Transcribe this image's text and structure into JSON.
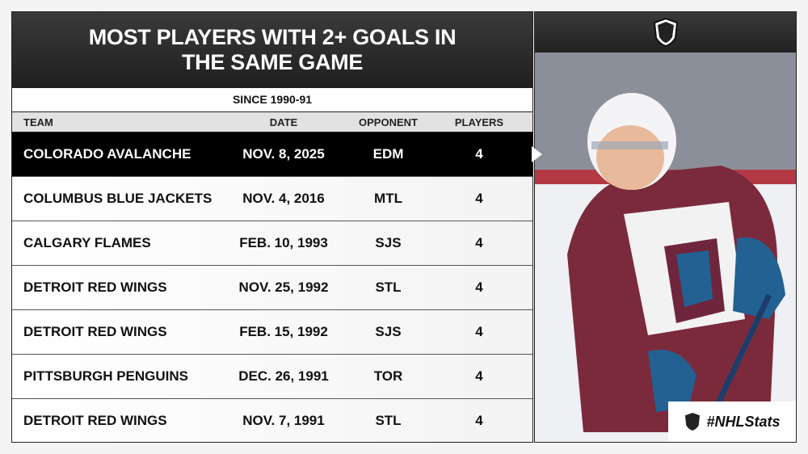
{
  "header": {
    "title": "MOST PLAYERS WITH 2+ GOALS IN THE SAME GAME",
    "subtitle": "SINCE 1990-91"
  },
  "table": {
    "columns": [
      "TEAM",
      "DATE",
      "OPPONENT",
      "PLAYERS"
    ],
    "rows": [
      [
        "COLORADO AVALANCHE",
        "NOV. 8, 2025",
        "EDM",
        "4"
      ],
      [
        "COLUMBUS BLUE JACKETS",
        "NOV. 4, 2016",
        "MTL",
        "4"
      ],
      [
        "CALGARY FLAMES",
        "FEB. 10, 1993",
        "SJS",
        "4"
      ],
      [
        "DETROIT RED WINGS",
        "NOV. 25, 1992",
        "STL",
        "4"
      ],
      [
        "DETROIT RED WINGS",
        "FEB. 15, 1992",
        "SJS",
        "4"
      ],
      [
        "PITTSBURGH PENGUINS",
        "DEC. 26, 1991",
        "TOR",
        "4"
      ],
      [
        "DETROIT RED WINGS",
        "NOV. 7, 1991",
        "STL",
        "4"
      ]
    ]
  },
  "footer": {
    "hashtag": "#NHLStats"
  }
}
